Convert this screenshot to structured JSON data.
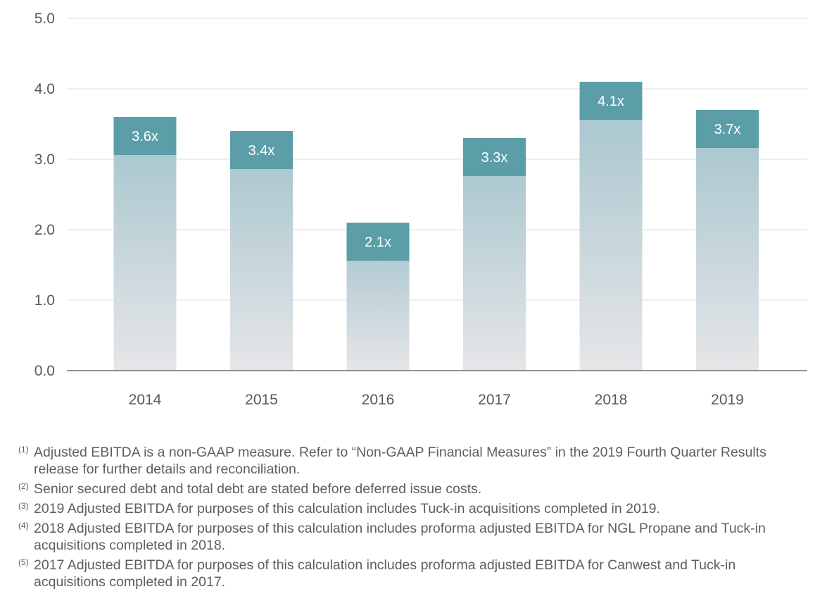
{
  "chart_data": {
    "type": "bar",
    "categories": [
      "2014",
      "2015",
      "2016",
      "2017",
      "2018",
      "2019"
    ],
    "values": [
      3.6,
      3.4,
      2.1,
      3.3,
      4.1,
      3.7
    ],
    "data_labels": [
      "3.6x",
      "3.4x",
      "2.1x",
      "3.3x",
      "4.1x",
      "3.7x"
    ],
    "yticks": [
      "0.0",
      "1.0",
      "2.0",
      "3.0",
      "4.0",
      "5.0"
    ],
    "ylim": [
      0,
      5
    ],
    "title": "",
    "xlabel": "",
    "ylabel": "",
    "grid": true
  },
  "colors": {
    "label_box": "#5c9ea8",
    "bar_top": "#a2c3cc",
    "bar_bottom": "#e6e6e8",
    "grid": "#dcdcdc",
    "axis": "#6d6e70"
  },
  "footnotes": [
    {
      "num": "(1)",
      "text": "Adjusted EBITDA is a non-GAAP measure. Refer to “Non-GAAP Financial Measures” in the 2019 Fourth Quarter Results release for further details and reconciliation."
    },
    {
      "num": "(2)",
      "text": "Senior secured debt and total debt are stated before deferred issue costs."
    },
    {
      "num": "(3)",
      "text": "2019 Adjusted EBITDA for purposes of this calculation includes Tuck-in acquisitions completed in 2019."
    },
    {
      "num": "(4)",
      "text": "2018 Adjusted EBITDA for purposes of this calculation includes proforma adjusted EBITDA for NGL Propane and Tuck-in acquisitions completed in 2018."
    },
    {
      "num": "(5)",
      "text": "2017 Adjusted EBITDA for purposes of this calculation includes proforma adjusted EBITDA for Canwest and Tuck-in acquisitions completed in 2017."
    }
  ]
}
